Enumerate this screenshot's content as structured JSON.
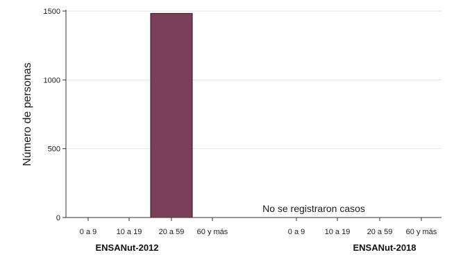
{
  "chart_data": {
    "type": "bar",
    "ylabel": "Número de personas",
    "ylim": [
      0,
      1500
    ],
    "yticks": [
      0,
      500,
      1000,
      1500
    ],
    "grid": true,
    "bar_color": "#7b3f5a",
    "groups": [
      {
        "name": "ENSANut-2012",
        "categories": [
          "0 a 9",
          "10 a 19",
          "20 a 59",
          "60 y más"
        ],
        "values": [
          0,
          0,
          1483,
          0
        ]
      },
      {
        "name": "ENSANut-2018",
        "categories": [
          "0 a 9",
          "10 a 19",
          "20 a 59",
          "60 y más"
        ],
        "values": [
          0,
          0,
          0,
          0
        ]
      }
    ],
    "annotations": [
      "No se registraron casos"
    ]
  }
}
